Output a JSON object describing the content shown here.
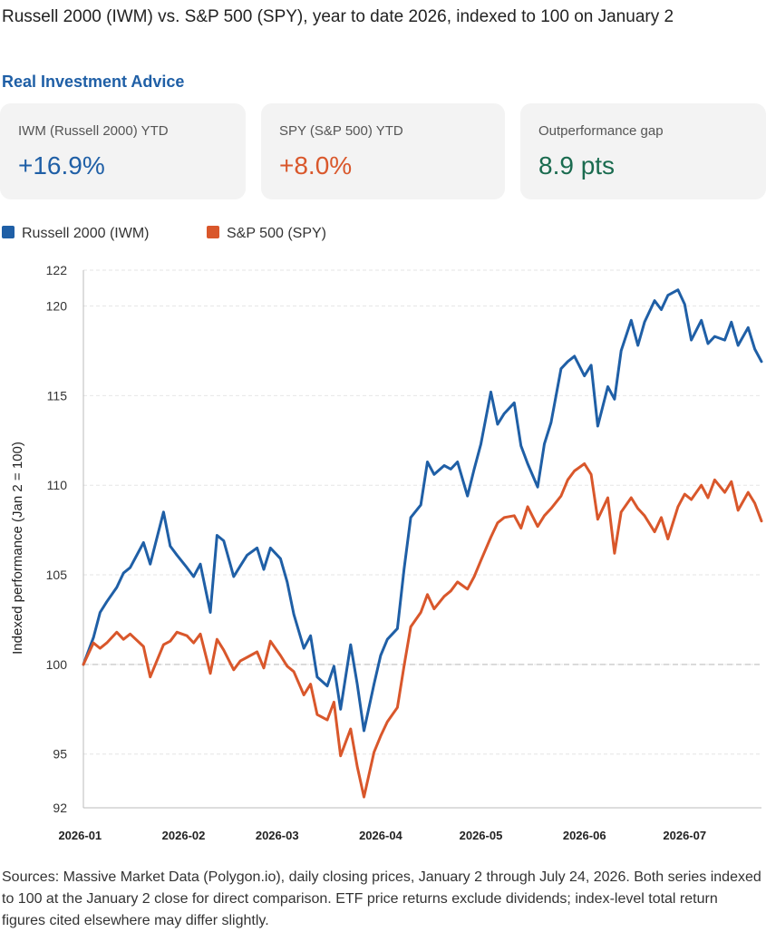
{
  "header": {
    "title": "Russell 2000 (IWM) vs. S&P 500 (SPY), year to date 2026, indexed to 100 on January 2",
    "source": "Real Investment Advice"
  },
  "cards": [
    {
      "label": "IWM (Russell 2000) YTD",
      "value": "+16.9%",
      "color": "#1f5fa6"
    },
    {
      "label": "SPY (S&P 500) YTD",
      "value": "+8.0%",
      "color": "#d9572b"
    },
    {
      "label": "Outperformance gap",
      "value": "8.9 pts",
      "color": "#1a6b4f"
    }
  ],
  "footer": {
    "text": "Sources: Massive Market Data (Polygon.io), daily closing prices, January 2 through July 24, 2026. Both series indexed to 100 at the January 2 close for direct comparison. ETF price returns exclude dividends; index-level total return figures cited elsewhere may differ slightly."
  },
  "chart_data": {
    "type": "line",
    "title": "",
    "xlabel": "",
    "ylabel": "Indexed performance (Jan 2 = 100)",
    "xlim": [
      "2026-01-02",
      "2026-07-24"
    ],
    "ylim": [
      92,
      122
    ],
    "yticks": [
      92,
      95,
      100,
      105,
      110,
      115,
      120,
      122
    ],
    "xticks": [
      "2026-01",
      "2026-02",
      "2026-03",
      "2026-04",
      "2026-05",
      "2026-06",
      "2026-07"
    ],
    "reference_line": 100,
    "grid": true,
    "legend_position": "top-left",
    "series": [
      {
        "name": "Russell 2000 (IWM)",
        "color": "#1f5fa6",
        "points": [
          [
            "2026-01-02",
            100.0
          ],
          [
            "2026-01-05",
            101.5
          ],
          [
            "2026-01-07",
            102.9
          ],
          [
            "2026-01-09",
            103.5
          ],
          [
            "2026-01-12",
            104.3
          ],
          [
            "2026-01-14",
            105.1
          ],
          [
            "2026-01-16",
            105.4
          ],
          [
            "2026-01-20",
            106.8
          ],
          [
            "2026-01-22",
            105.6
          ],
          [
            "2026-01-26",
            108.5
          ],
          [
            "2026-01-28",
            106.6
          ],
          [
            "2026-01-30",
            106.1
          ],
          [
            "2026-02-02",
            105.4
          ],
          [
            "2026-02-04",
            104.9
          ],
          [
            "2026-02-06",
            105.6
          ],
          [
            "2026-02-09",
            102.9
          ],
          [
            "2026-02-11",
            107.2
          ],
          [
            "2026-02-13",
            106.9
          ],
          [
            "2026-02-16",
            104.9
          ],
          [
            "2026-02-18",
            105.5
          ],
          [
            "2026-02-20",
            106.1
          ],
          [
            "2026-02-23",
            106.5
          ],
          [
            "2026-02-25",
            105.3
          ],
          [
            "2026-02-27",
            106.5
          ],
          [
            "2026-03-02",
            105.9
          ],
          [
            "2026-03-04",
            104.6
          ],
          [
            "2026-03-06",
            102.8
          ],
          [
            "2026-03-09",
            100.9
          ],
          [
            "2026-03-11",
            101.6
          ],
          [
            "2026-03-13",
            99.3
          ],
          [
            "2026-03-16",
            98.8
          ],
          [
            "2026-03-18",
            99.9
          ],
          [
            "2026-03-20",
            97.5
          ],
          [
            "2026-03-23",
            101.1
          ],
          [
            "2026-03-25",
            98.9
          ],
          [
            "2026-03-27",
            96.3
          ],
          [
            "2026-03-30",
            98.9
          ],
          [
            "2026-04-01",
            100.5
          ],
          [
            "2026-04-03",
            101.4
          ],
          [
            "2026-04-06",
            102.0
          ],
          [
            "2026-04-08",
            105.3
          ],
          [
            "2026-04-10",
            108.2
          ],
          [
            "2026-04-13",
            108.9
          ],
          [
            "2026-04-15",
            111.3
          ],
          [
            "2026-04-17",
            110.6
          ],
          [
            "2026-04-20",
            111.1
          ],
          [
            "2026-04-22",
            110.9
          ],
          [
            "2026-04-24",
            111.3
          ],
          [
            "2026-04-27",
            109.4
          ],
          [
            "2026-04-29",
            110.9
          ],
          [
            "2026-05-01",
            112.3
          ],
          [
            "2026-05-04",
            115.2
          ],
          [
            "2026-05-06",
            113.4
          ],
          [
            "2026-05-08",
            114.0
          ],
          [
            "2026-05-11",
            114.6
          ],
          [
            "2026-05-13",
            112.2
          ],
          [
            "2026-05-15",
            111.2
          ],
          [
            "2026-05-18",
            109.9
          ],
          [
            "2026-05-20",
            112.3
          ],
          [
            "2026-05-22",
            113.5
          ],
          [
            "2026-05-25",
            116.5
          ],
          [
            "2026-05-27",
            116.9
          ],
          [
            "2026-05-29",
            117.2
          ],
          [
            "2026-06-01",
            116.1
          ],
          [
            "2026-06-03",
            116.7
          ],
          [
            "2026-06-05",
            113.3
          ],
          [
            "2026-06-08",
            115.5
          ],
          [
            "2026-06-10",
            114.8
          ],
          [
            "2026-06-12",
            117.5
          ],
          [
            "2026-06-15",
            119.2
          ],
          [
            "2026-06-17",
            117.8
          ],
          [
            "2026-06-19",
            119.1
          ],
          [
            "2026-06-22",
            120.3
          ],
          [
            "2026-06-24",
            119.8
          ],
          [
            "2026-06-26",
            120.6
          ],
          [
            "2026-06-29",
            120.9
          ],
          [
            "2026-07-01",
            120.1
          ],
          [
            "2026-07-03",
            118.1
          ],
          [
            "2026-07-06",
            119.2
          ],
          [
            "2026-07-08",
            117.9
          ],
          [
            "2026-07-10",
            118.3
          ],
          [
            "2026-07-13",
            118.1
          ],
          [
            "2026-07-15",
            119.1
          ],
          [
            "2026-07-17",
            117.8
          ],
          [
            "2026-07-20",
            118.8
          ],
          [
            "2026-07-22",
            117.6
          ],
          [
            "2026-07-24",
            116.9
          ]
        ]
      },
      {
        "name": "S&P 500 (SPY)",
        "color": "#d9572b",
        "points": [
          [
            "2026-01-02",
            100.0
          ],
          [
            "2026-01-05",
            101.2
          ],
          [
            "2026-01-07",
            100.9
          ],
          [
            "2026-01-09",
            101.2
          ],
          [
            "2026-01-12",
            101.8
          ],
          [
            "2026-01-14",
            101.4
          ],
          [
            "2026-01-16",
            101.7
          ],
          [
            "2026-01-20",
            101.0
          ],
          [
            "2026-01-22",
            99.3
          ],
          [
            "2026-01-26",
            101.1
          ],
          [
            "2026-01-28",
            101.3
          ],
          [
            "2026-01-30",
            101.8
          ],
          [
            "2026-02-02",
            101.6
          ],
          [
            "2026-02-04",
            101.2
          ],
          [
            "2026-02-06",
            101.7
          ],
          [
            "2026-02-09",
            99.5
          ],
          [
            "2026-02-11",
            101.4
          ],
          [
            "2026-02-13",
            100.8
          ],
          [
            "2026-02-16",
            99.7
          ],
          [
            "2026-02-18",
            100.2
          ],
          [
            "2026-02-20",
            100.4
          ],
          [
            "2026-02-23",
            100.7
          ],
          [
            "2026-02-25",
            99.8
          ],
          [
            "2026-02-27",
            101.3
          ],
          [
            "2026-03-02",
            100.5
          ],
          [
            "2026-03-04",
            99.9
          ],
          [
            "2026-03-06",
            99.6
          ],
          [
            "2026-03-09",
            98.3
          ],
          [
            "2026-03-11",
            98.9
          ],
          [
            "2026-03-13",
            97.2
          ],
          [
            "2026-03-16",
            96.9
          ],
          [
            "2026-03-18",
            97.9
          ],
          [
            "2026-03-20",
            94.9
          ],
          [
            "2026-03-23",
            96.4
          ],
          [
            "2026-03-25",
            94.3
          ],
          [
            "2026-03-27",
            92.6
          ],
          [
            "2026-03-30",
            95.1
          ],
          [
            "2026-04-01",
            96.0
          ],
          [
            "2026-04-03",
            96.8
          ],
          [
            "2026-04-06",
            97.6
          ],
          [
            "2026-04-08",
            99.9
          ],
          [
            "2026-04-10",
            102.1
          ],
          [
            "2026-04-13",
            102.9
          ],
          [
            "2026-04-15",
            103.9
          ],
          [
            "2026-04-17",
            103.1
          ],
          [
            "2026-04-20",
            103.8
          ],
          [
            "2026-04-22",
            104.1
          ],
          [
            "2026-04-24",
            104.6
          ],
          [
            "2026-04-27",
            104.2
          ],
          [
            "2026-04-29",
            104.9
          ],
          [
            "2026-05-01",
            105.8
          ],
          [
            "2026-05-04",
            107.1
          ],
          [
            "2026-05-06",
            107.9
          ],
          [
            "2026-05-08",
            108.2
          ],
          [
            "2026-05-11",
            108.3
          ],
          [
            "2026-05-13",
            107.6
          ],
          [
            "2026-05-15",
            108.8
          ],
          [
            "2026-05-18",
            107.7
          ],
          [
            "2026-05-20",
            108.3
          ],
          [
            "2026-05-22",
            108.7
          ],
          [
            "2026-05-25",
            109.4
          ],
          [
            "2026-05-27",
            110.3
          ],
          [
            "2026-05-29",
            110.8
          ],
          [
            "2026-06-01",
            111.2
          ],
          [
            "2026-06-03",
            110.6
          ],
          [
            "2026-06-05",
            108.1
          ],
          [
            "2026-06-08",
            109.3
          ],
          [
            "2026-06-10",
            106.2
          ],
          [
            "2026-06-12",
            108.5
          ],
          [
            "2026-06-15",
            109.3
          ],
          [
            "2026-06-17",
            108.7
          ],
          [
            "2026-06-19",
            108.3
          ],
          [
            "2026-06-22",
            107.4
          ],
          [
            "2026-06-24",
            108.2
          ],
          [
            "2026-06-26",
            107.0
          ],
          [
            "2026-06-29",
            108.8
          ],
          [
            "2026-07-01",
            109.5
          ],
          [
            "2026-07-03",
            109.2
          ],
          [
            "2026-07-06",
            110.0
          ],
          [
            "2026-07-08",
            109.3
          ],
          [
            "2026-07-10",
            110.3
          ],
          [
            "2026-07-13",
            109.6
          ],
          [
            "2026-07-15",
            110.2
          ],
          [
            "2026-07-17",
            108.6
          ],
          [
            "2026-07-20",
            109.6
          ],
          [
            "2026-07-22",
            109.0
          ],
          [
            "2026-07-24",
            108.0
          ]
        ]
      }
    ]
  }
}
